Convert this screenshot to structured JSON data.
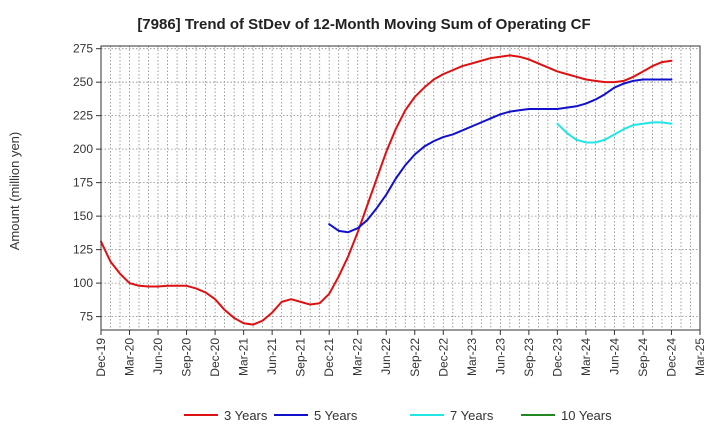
{
  "chart_data": {
    "type": "line",
    "title": "[7986]  Trend of StDev of 12-Month Moving Sum of Operating CF",
    "xlabel": "",
    "ylabel": "Amount (million yen)",
    "ylim": [
      65,
      277
    ],
    "y_ticks": [
      75,
      100,
      125,
      150,
      175,
      200,
      225,
      250,
      275
    ],
    "x_tick_labels": [
      "Dec-19",
      "Mar-20",
      "Jun-20",
      "Sep-20",
      "Dec-20",
      "Mar-21",
      "Jun-21",
      "Sep-21",
      "Dec-21",
      "Mar-22",
      "Jun-22",
      "Sep-22",
      "Dec-22",
      "Mar-23",
      "Jun-23",
      "Sep-23",
      "Dec-23",
      "Mar-24",
      "Jun-24",
      "Sep-24",
      "Dec-24",
      "Mar-25"
    ],
    "grid": true,
    "legend_position": "bottom",
    "series": [
      {
        "name": "3 Years",
        "color": "#dd1111",
        "values": [
          131,
          116,
          107,
          100,
          98,
          97.5,
          97.5,
          98,
          98,
          98,
          96,
          93,
          88,
          80,
          74,
          70,
          69,
          72,
          78,
          86,
          88,
          86,
          84,
          85,
          92,
          105,
          120,
          138,
          158,
          178,
          198,
          215,
          229,
          239,
          246,
          252,
          256,
          259,
          262,
          264,
          266,
          268,
          269,
          270,
          269,
          267,
          264,
          261,
          258,
          256,
          254,
          252,
          251,
          250,
          250,
          251,
          254,
          258,
          262,
          265,
          266
        ]
      },
      {
        "name": "5 Years",
        "color": "#1111cc",
        "values": [
          null,
          null,
          null,
          null,
          null,
          null,
          null,
          null,
          null,
          null,
          null,
          null,
          null,
          null,
          null,
          null,
          null,
          null,
          null,
          null,
          null,
          null,
          null,
          null,
          144,
          139,
          138,
          141,
          147,
          156,
          166,
          178,
          188,
          196,
          202,
          206,
          209,
          211,
          214,
          217,
          220,
          223,
          226,
          228,
          229,
          230,
          230,
          230,
          230,
          231,
          232,
          234,
          237,
          241,
          246,
          249,
          251,
          252,
          252,
          252,
          252
        ]
      },
      {
        "name": "7 Years",
        "color": "#22e5e5",
        "values": [
          null,
          null,
          null,
          null,
          null,
          null,
          null,
          null,
          null,
          null,
          null,
          null,
          null,
          null,
          null,
          null,
          null,
          null,
          null,
          null,
          null,
          null,
          null,
          null,
          null,
          null,
          null,
          null,
          null,
          null,
          null,
          null,
          null,
          null,
          null,
          null,
          null,
          null,
          null,
          null,
          null,
          null,
          null,
          null,
          null,
          null,
          null,
          null,
          219,
          212,
          207,
          205,
          205,
          207,
          211,
          215,
          218,
          219,
          220,
          220,
          219
        ]
      },
      {
        "name": "10 Years",
        "color": "#228822",
        "values": []
      }
    ]
  }
}
